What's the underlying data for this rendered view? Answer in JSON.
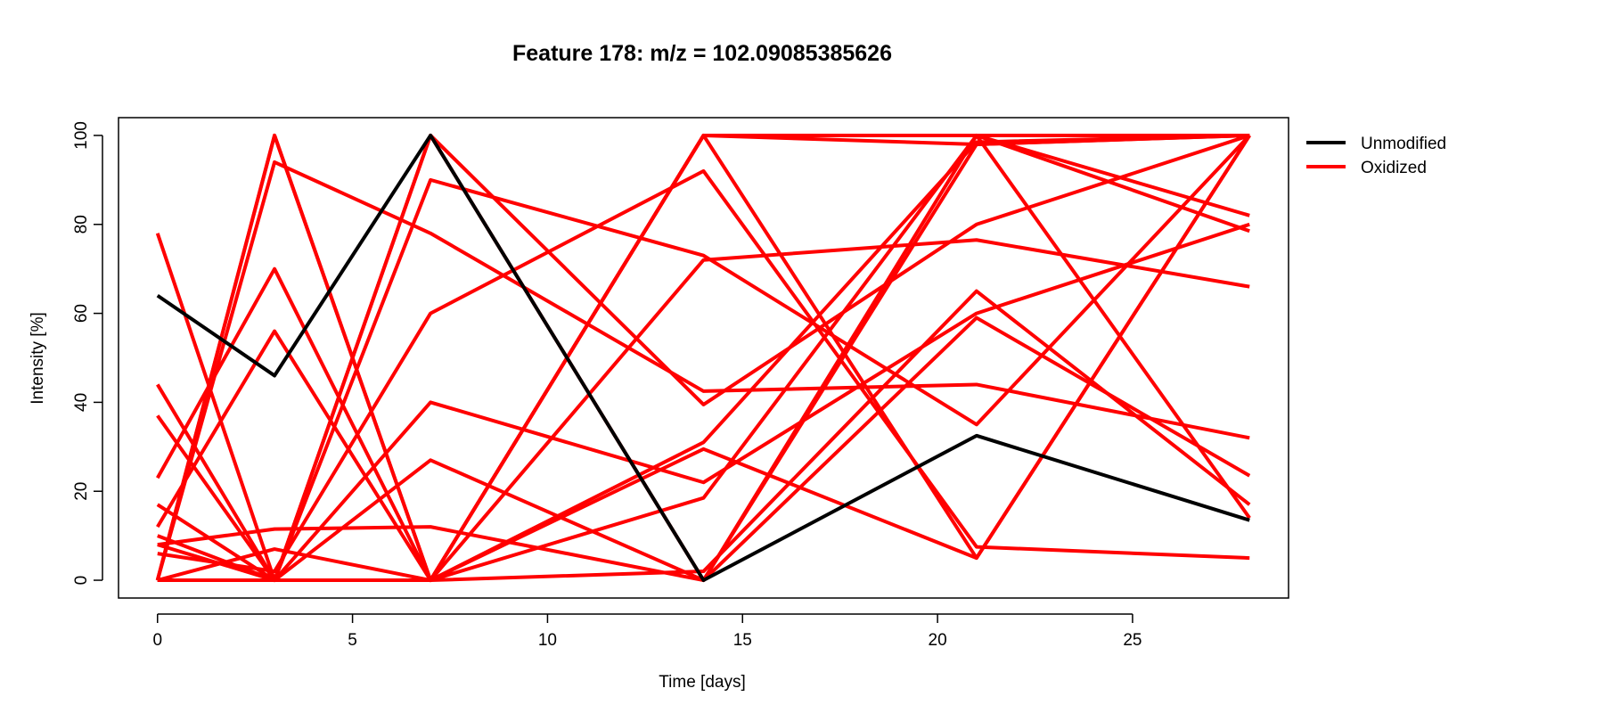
{
  "chart_data": {
    "type": "line",
    "title": "Feature 178: m/z = 102.09085385626",
    "xlabel": "Time [days]",
    "ylabel": "Intensity [%]",
    "x": [
      0,
      3,
      7,
      14,
      21,
      28
    ],
    "xlim": [
      -1,
      29
    ],
    "ylim": [
      -4,
      104
    ],
    "xticks": [
      0,
      5,
      10,
      15,
      20,
      25
    ],
    "yticks": [
      0,
      20,
      40,
      60,
      80,
      100
    ],
    "grid": false,
    "legend_position": "top-right, outside plot",
    "colors": {
      "Unmodified": "#000000",
      "Oxidized": "#ff0000"
    },
    "legend": [
      {
        "label": "Unmodified",
        "color": "#000000"
      },
      {
        "label": "Oxidized",
        "color": "#ff0000"
      }
    ],
    "series": [
      {
        "group": "Unmodified",
        "values": [
          64,
          46,
          100,
          0,
          32.5,
          13.5
        ]
      },
      {
        "group": "Oxidized",
        "values": [
          78,
          0,
          100,
          0,
          98,
          100
        ]
      },
      {
        "group": "Oxidized",
        "values": [
          0,
          100,
          0,
          100,
          100,
          100
        ]
      },
      {
        "group": "Oxidized",
        "values": [
          0,
          94,
          78,
          42.5,
          44,
          32
        ]
      },
      {
        "group": "Oxidized",
        "values": [
          23,
          70,
          0,
          100,
          5,
          100
        ]
      },
      {
        "group": "Oxidized",
        "values": [
          0,
          100,
          0,
          100,
          98,
          100
        ]
      },
      {
        "group": "Oxidized",
        "values": [
          44,
          0,
          27,
          0,
          100,
          78.5
        ]
      },
      {
        "group": "Oxidized",
        "values": [
          37,
          0,
          90,
          73,
          35,
          100
        ]
      },
      {
        "group": "Oxidized",
        "values": [
          0,
          0,
          0,
          100,
          100,
          82
        ]
      },
      {
        "group": "Oxidized",
        "values": [
          6,
          2,
          60,
          92,
          7.5,
          5
        ]
      },
      {
        "group": "Oxidized",
        "values": [
          10,
          0,
          100,
          39.5,
          80,
          100
        ]
      },
      {
        "group": "Oxidized",
        "values": [
          17,
          0,
          0,
          72,
          76.5,
          66
        ]
      },
      {
        "group": "Oxidized",
        "values": [
          12,
          56,
          0,
          29.5,
          5,
          100
        ]
      },
      {
        "group": "Oxidized",
        "values": [
          0,
          7,
          0,
          31,
          98.5,
          100
        ]
      },
      {
        "group": "Oxidized",
        "values": [
          8,
          11.5,
          12,
          0,
          59,
          23.5
        ]
      },
      {
        "group": "Oxidized",
        "values": [
          0,
          0,
          0,
          18.5,
          100,
          14
        ]
      },
      {
        "group": "Oxidized",
        "values": [
          0,
          0,
          40,
          22,
          60,
          80
        ]
      },
      {
        "group": "Oxidized",
        "values": [
          8,
          0,
          0,
          2,
          65,
          17
        ]
      }
    ]
  }
}
